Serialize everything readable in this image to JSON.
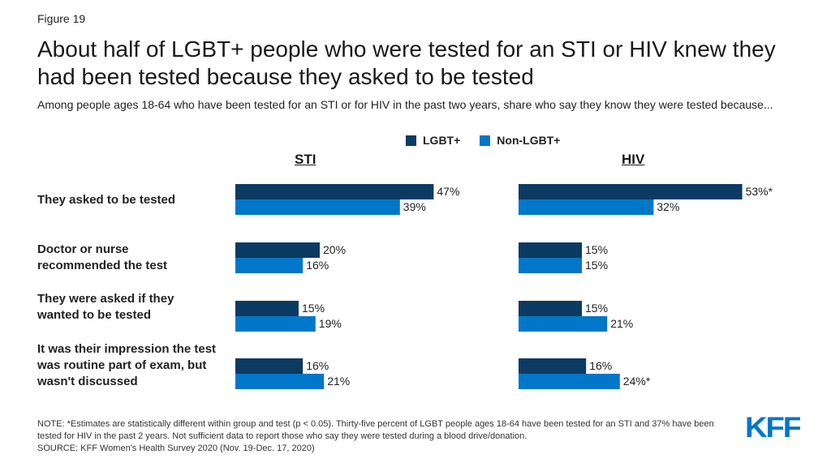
{
  "figure_label": "Figure 19",
  "title": "About half of LGBT+ people who were tested for an STI or HIV knew they had been tested because they asked to be tested",
  "subtitle": "Among people ages 18-64 who have been tested for an STI or for HIV in the past two years, share who say they know they were tested because...",
  "notes": {
    "note": "NOTE: *Estimates are statistically different within group and test (p < 0.05). Thirty-five  percent of LGBT people ages 18-64 have been tested for an STI and 37% have been tested for HIV in the past 2 years. Not sufficient data to report those who say they were tested during a blood drive/donation.",
    "source": "SOURCE: KFF Women's Health Survey 2020 (Nov. 19-Dec. 17, 2020)"
  },
  "logo_text": "KFF",
  "colors": {
    "lgbt": "#0b3a62",
    "non_lgbt": "#0077c8"
  },
  "chart_data": {
    "type": "bar",
    "orientation": "horizontal",
    "categories": [
      "They asked to be tested",
      "Doctor or nurse recommended the test",
      "They were asked if they wanted to be tested",
      "It was their impression the test was routine part of exam, but wasn't discussed"
    ],
    "legend": [
      "LGBT+",
      "Non-LGBT+"
    ],
    "legend_position": "top",
    "panels": [
      {
        "title": "STI",
        "series": [
          {
            "name": "LGBT+",
            "values": [
              47,
              20,
              15,
              16
            ],
            "labels": [
              "47%",
              "20%",
              "15%",
              "16%"
            ]
          },
          {
            "name": "Non-LGBT+",
            "values": [
              39,
              16,
              19,
              21
            ],
            "labels": [
              "39%",
              "16%",
              "19%",
              "21%"
            ]
          }
        ]
      },
      {
        "title": "HIV",
        "series": [
          {
            "name": "LGBT+",
            "values": [
              53,
              15,
              15,
              16
            ],
            "labels": [
              "53%*",
              "15%",
              "15%",
              "16%"
            ]
          },
          {
            "name": "Non-LGBT+",
            "values": [
              32,
              15,
              21,
              24
            ],
            "labels": [
              "32%",
              "15%",
              "21%",
              "24%*"
            ]
          }
        ]
      }
    ],
    "grid": false
  }
}
